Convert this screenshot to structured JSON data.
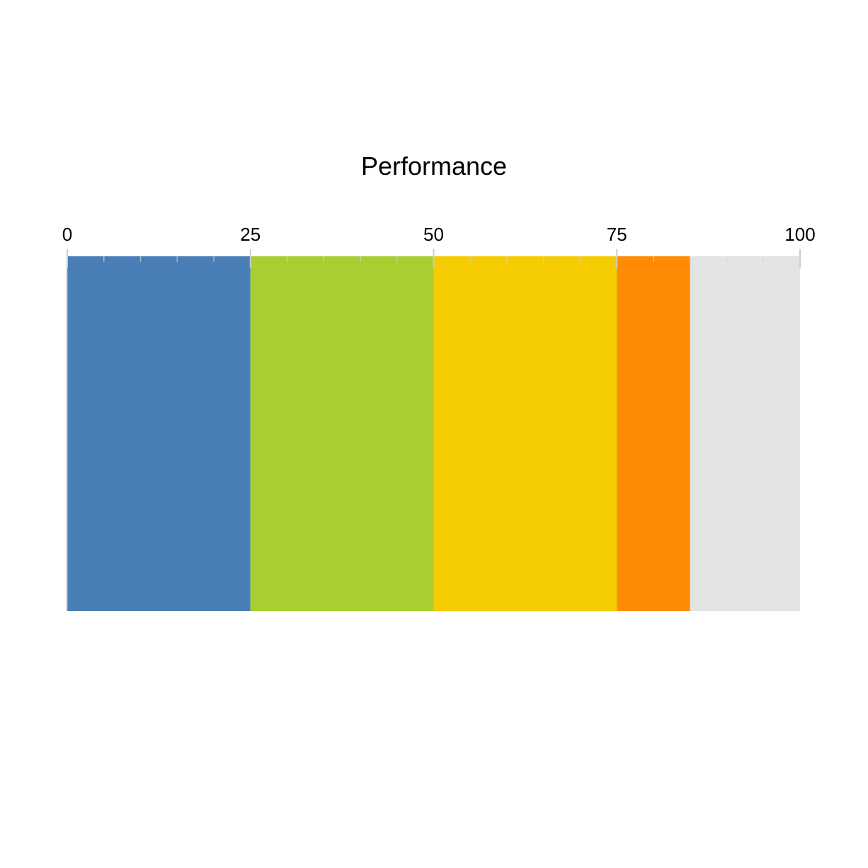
{
  "chart_data": {
    "type": "bar",
    "title": "Performance",
    "xlabel": "",
    "ylabel": "",
    "orientation": "horizontal",
    "stacked": true,
    "xlim": [
      0,
      100
    ],
    "major_ticks": [
      0,
      25,
      50,
      75,
      100
    ],
    "minor_ticks": [
      5,
      10,
      15,
      20,
      30,
      35,
      40,
      45,
      55,
      60,
      65,
      70,
      80,
      85,
      90,
      95
    ],
    "tick_labels": [
      "0",
      "25",
      "50",
      "75",
      "100"
    ],
    "axis_position": "top",
    "grid": false,
    "legend": "none",
    "segments": [
      {
        "start": 0,
        "end": 25,
        "color": "#4a7eb6"
      },
      {
        "start": 25,
        "end": 50,
        "color": "#a8cf32"
      },
      {
        "start": 50,
        "end": 75,
        "color": "#f5cc02"
      },
      {
        "start": 75,
        "end": 85,
        "color": "#fe8b03"
      },
      {
        "start": 85,
        "end": 100,
        "color": "#e4e4e4"
      }
    ],
    "value": 85
  }
}
